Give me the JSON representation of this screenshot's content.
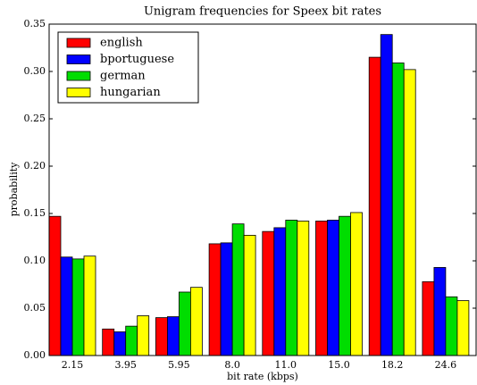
{
  "chart_data": {
    "type": "bar",
    "title": "Unigram frequencies for Speex bit rates",
    "xlabel": "bit rate (kbps)",
    "ylabel": "probability",
    "categories": [
      "2.15",
      "3.95",
      "5.95",
      "8.0",
      "11.0",
      "15.0",
      "18.2",
      "24.6"
    ],
    "series": [
      {
        "name": "english",
        "color": "#ff0000",
        "values": [
          0.147,
          0.028,
          0.04,
          0.118,
          0.131,
          0.142,
          0.315,
          0.078
        ]
      },
      {
        "name": "bportuguese",
        "color": "#0000ff",
        "values": [
          0.104,
          0.025,
          0.041,
          0.119,
          0.135,
          0.143,
          0.339,
          0.093
        ]
      },
      {
        "name": "german",
        "color": "#00dd00",
        "values": [
          0.102,
          0.031,
          0.067,
          0.139,
          0.143,
          0.147,
          0.309,
          0.062
        ]
      },
      {
        "name": "hungarian",
        "color": "#ffff00",
        "values": [
          0.105,
          0.042,
          0.072,
          0.127,
          0.142,
          0.151,
          0.302,
          0.058
        ]
      }
    ],
    "ylim": [
      0,
      0.35
    ],
    "yticks": [
      {
        "value": 0,
        "label": "0.00"
      },
      {
        "value": 0.05,
        "label": "0.05"
      },
      {
        "value": 0.1,
        "label": "0.10"
      },
      {
        "value": 0.15,
        "label": "0.15"
      },
      {
        "value": 0.2,
        "label": "0.20"
      },
      {
        "value": 0.25,
        "label": "0.25"
      },
      {
        "value": 0.3,
        "label": "0.30"
      },
      {
        "value": 0.35,
        "label": "0.35"
      }
    ],
    "legend": "upper left",
    "grid": false
  }
}
